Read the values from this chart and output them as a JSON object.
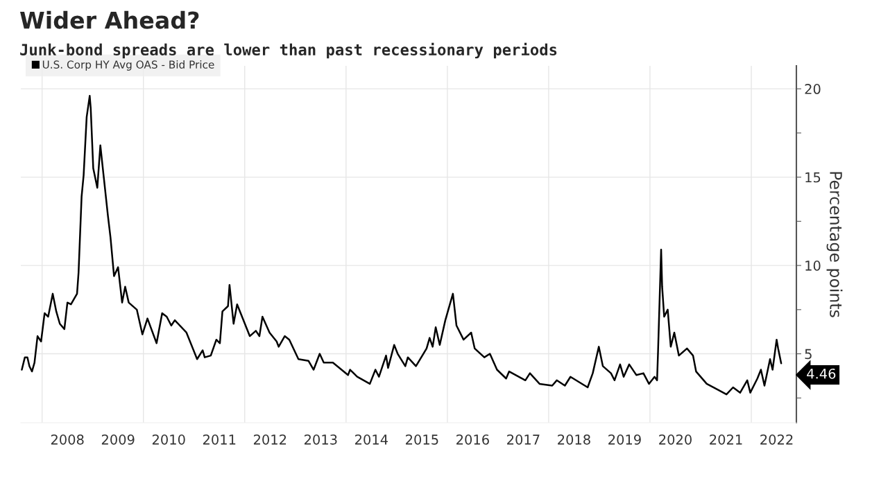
{
  "chart_data": {
    "type": "line",
    "title": "Wider Ahead?",
    "subtitle": "Junk-bond spreads are lower than past recessionary periods",
    "ylabel": "Percentage points",
    "x": [
      2007.6,
      2007.66,
      2007.71,
      2007.75,
      2007.8,
      2007.85,
      2007.91,
      2007.98,
      2008.05,
      2008.12,
      2008.21,
      2008.28,
      2008.35,
      2008.44,
      2008.5,
      2008.57,
      2008.69,
      2008.72,
      2008.78,
      2008.82,
      2008.88,
      2008.94,
      2008.96,
      2009.01,
      2009.09,
      2009.15,
      2009.21,
      2009.3,
      2009.35,
      2009.42,
      2009.5,
      2009.58,
      2009.64,
      2009.71,
      2009.87,
      2009.98,
      2010.08,
      2010.26,
      2010.37,
      2010.46,
      2010.55,
      2010.62,
      2010.85,
      2011.06,
      2011.17,
      2011.21,
      2011.33,
      2011.44,
      2011.51,
      2011.56,
      2011.67,
      2011.7,
      2011.78,
      2011.85,
      2012.1,
      2012.22,
      2012.29,
      2012.35,
      2012.49,
      2012.63,
      2012.67,
      2012.79,
      2012.88,
      2013.06,
      2013.26,
      2013.36,
      2013.48,
      2013.56,
      2013.74,
      2014.04,
      2014.08,
      2014.22,
      2014.47,
      2014.58,
      2014.65,
      2014.79,
      2014.83,
      2014.95,
      2015.02,
      2015.17,
      2015.22,
      2015.38,
      2015.59,
      2015.65,
      2015.71,
      2015.77,
      2015.85,
      2015.96,
      2016.05,
      2016.11,
      2016.18,
      2016.32,
      2016.47,
      2016.54,
      2016.73,
      2016.84,
      2016.98,
      2017.16,
      2017.22,
      2017.54,
      2017.63,
      2017.82,
      2018.07,
      2018.16,
      2018.32,
      2018.43,
      2018.77,
      2018.87,
      2018.99,
      2019.07,
      2019.23,
      2019.3,
      2019.41,
      2019.48,
      2019.59,
      2019.73,
      2019.87,
      2019.98,
      2020.09,
      2020.14,
      2020.16,
      2020.22,
      2020.24,
      2020.28,
      2020.35,
      2020.41,
      2020.48,
      2020.57,
      2020.73,
      2020.85,
      2020.91,
      2021.12,
      2021.32,
      2021.51,
      2021.64,
      2021.78,
      2021.92,
      2021.98,
      2022.12,
      2022.19,
      2022.26,
      2022.37,
      2022.42,
      2022.5,
      2022.53,
      2022.59
    ],
    "series": [
      {
        "name": "U.S. Corp HY Avg OAS - Bid Price",
        "color": "#000000",
        "values": [
          4.1,
          4.8,
          4.8,
          4.3,
          4.0,
          4.5,
          6.0,
          5.7,
          7.3,
          7.1,
          8.4,
          7.4,
          6.7,
          6.4,
          7.9,
          7.8,
          8.4,
          9.6,
          13.9,
          15.1,
          18.4,
          19.6,
          18.9,
          15.5,
          14.4,
          16.8,
          15.2,
          12.8,
          11.6,
          9.4,
          9.9,
          7.9,
          8.8,
          7.9,
          7.5,
          6.1,
          7.0,
          5.6,
          7.3,
          7.1,
          6.6,
          6.9,
          6.2,
          4.7,
          5.2,
          4.8,
          4.9,
          5.8,
          5.6,
          7.4,
          7.7,
          8.9,
          6.7,
          7.8,
          6.0,
          6.3,
          6.0,
          7.1,
          6.2,
          5.7,
          5.4,
          6.0,
          5.8,
          4.7,
          4.6,
          4.1,
          5.0,
          4.5,
          4.5,
          3.8,
          4.1,
          3.7,
          3.3,
          4.1,
          3.7,
          4.9,
          4.2,
          5.5,
          5.0,
          4.3,
          4.8,
          4.3,
          5.3,
          5.9,
          5.4,
          6.5,
          5.5,
          6.9,
          7.8,
          8.4,
          6.6,
          5.8,
          6.2,
          5.3,
          4.8,
          5.0,
          4.1,
          3.6,
          4.0,
          3.5,
          3.9,
          3.3,
          3.2,
          3.5,
          3.2,
          3.7,
          3.1,
          3.9,
          5.4,
          4.3,
          3.9,
          3.5,
          4.4,
          3.7,
          4.4,
          3.8,
          3.9,
          3.3,
          3.7,
          3.5,
          5.2,
          10.9,
          8.8,
          7.1,
          7.5,
          5.4,
          6.2,
          4.9,
          5.3,
          4.9,
          4.0,
          3.3,
          3.0,
          2.7,
          3.1,
          2.8,
          3.5,
          2.8,
          3.6,
          4.1,
          3.2,
          4.7,
          4.1,
          5.8,
          5.3,
          4.46
        ]
      }
    ],
    "xlim": [
      2007.58,
      2022.89
    ],
    "xticks": [
      {
        "value": 2008.5,
        "label": "2008"
      },
      {
        "value": 2009.5,
        "label": "2009"
      },
      {
        "value": 2010.5,
        "label": "2010"
      },
      {
        "value": 2011.5,
        "label": "2011"
      },
      {
        "value": 2012.5,
        "label": "2012"
      },
      {
        "value": 2013.5,
        "label": "2013"
      },
      {
        "value": 2014.5,
        "label": "2014"
      },
      {
        "value": 2015.5,
        "label": "2015"
      },
      {
        "value": 2016.5,
        "label": "2016"
      },
      {
        "value": 2017.5,
        "label": "2017"
      },
      {
        "value": 2018.5,
        "label": "2018"
      },
      {
        "value": 2019.5,
        "label": "2019"
      },
      {
        "value": 2020.5,
        "label": "2020"
      },
      {
        "value": 2021.5,
        "label": "2021"
      },
      {
        "value": 2022.5,
        "label": "2022"
      },
      {
        "value": 2008,
        "label": null
      },
      {
        "value": 2010,
        "label": null
      },
      {
        "value": 2012,
        "label": null
      },
      {
        "value": 2014,
        "label": null
      },
      {
        "value": 2016,
        "label": null
      },
      {
        "value": 2018,
        "label": null
      },
      {
        "value": 2020,
        "label": null
      },
      {
        "value": 2022,
        "label": null
      }
    ],
    "ylim": [
      1.1,
      21.3
    ],
    "yticks": [
      {
        "value": 2.5,
        "label": null
      },
      5,
      {
        "value": 7.5,
        "label": null
      },
      10,
      {
        "value": 12.5,
        "label": null
      },
      15,
      {
        "value": 17.5,
        "label": null
      },
      20
    ],
    "grid": true,
    "legend": "top left",
    "marker": "none",
    "line_style": "solid",
    "annotations": [
      {
        "text": "4.46",
        "x": 2022.59,
        "y": 4.46
      }
    ]
  }
}
